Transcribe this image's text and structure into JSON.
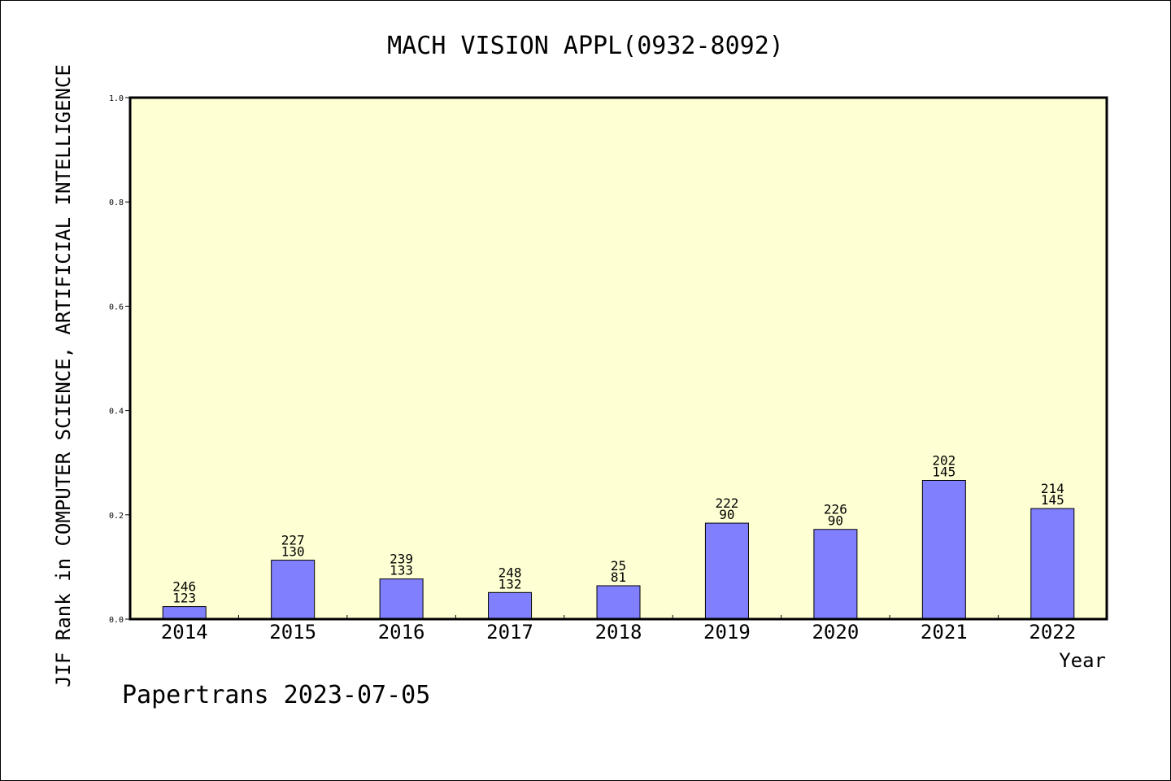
{
  "chart_data": {
    "type": "bar",
    "title": "MACH VISION APPL(0932-8092)",
    "xlabel": "Year",
    "ylabel": "JIF Rank in COMPUTER SCIENCE, ARTIFICIAL INTELLIGENCE",
    "footer": "Papertrans 2023-07-05",
    "ylim": [
      0,
      1.0
    ],
    "yticks": [
      "0.0",
      "0.2",
      "0.4",
      "0.6",
      "0.8",
      "1.0"
    ],
    "categories": [
      "2014",
      "2015",
      "2016",
      "2017",
      "2018",
      "2019",
      "2020",
      "2021",
      "2022"
    ],
    "values": [
      0.024,
      0.113,
      0.077,
      0.051,
      0.064,
      0.184,
      0.172,
      0.266,
      0.212
    ],
    "bar_labels": [
      {
        "top": "246",
        "bottom": "123"
      },
      {
        "top": "227",
        "bottom": "130"
      },
      {
        "top": "239",
        "bottom": "133"
      },
      {
        "top": "248",
        "bottom": "132"
      },
      {
        "top": "25",
        "bottom": "81"
      },
      {
        "top": "222",
        "bottom": "90"
      },
      {
        "top": "226",
        "bottom": "90"
      },
      {
        "top": "202",
        "bottom": "145"
      },
      {
        "top": "214",
        "bottom": "145"
      }
    ],
    "grid": false,
    "colors": {
      "bar_fill": "#8080ff",
      "plot_background": "#ffffd4",
      "axis": "#000000"
    }
  }
}
